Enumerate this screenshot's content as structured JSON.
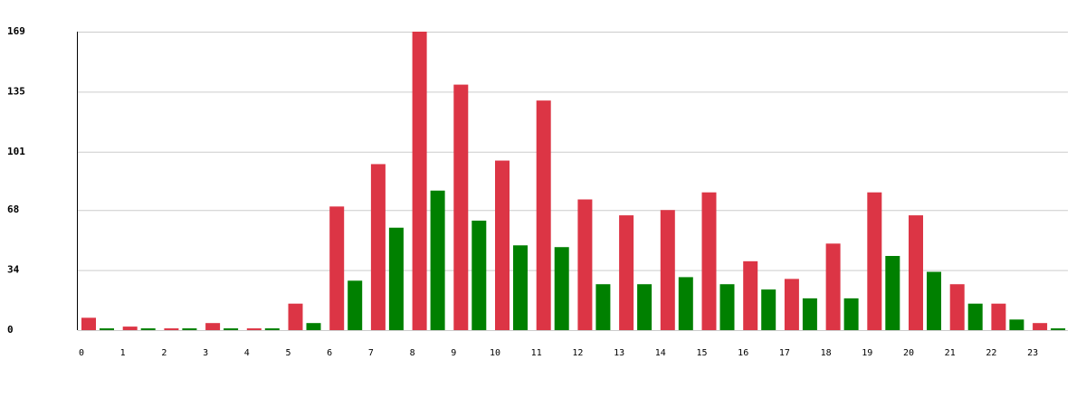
{
  "chart_data": {
    "type": "grouped-bar",
    "categories": [
      "0",
      "1",
      "2",
      "3",
      "4",
      "5",
      "6",
      "7",
      "8",
      "9",
      "10",
      "11",
      "12",
      "13",
      "14",
      "15",
      "16",
      "17",
      "18",
      "19",
      "20",
      "21",
      "22",
      "23"
    ],
    "series": [
      {
        "color": "#dc3545",
        "values": [
          7,
          2,
          1,
          4,
          1,
          15,
          70,
          94,
          169,
          139,
          96,
          130,
          74,
          65,
          68,
          78,
          39,
          29,
          49,
          78,
          65,
          26,
          15,
          4
        ]
      },
      {
        "color": "#008000",
        "values": [
          1,
          1,
          1,
          1,
          1,
          4,
          28,
          58,
          79,
          62,
          48,
          47,
          26,
          26,
          30,
          26,
          23,
          18,
          18,
          42,
          33,
          15,
          6,
          1
        ]
      }
    ],
    "ylim": [
      0,
      169
    ],
    "yticks": [
      0,
      34,
      68,
      101,
      135,
      169
    ],
    "grid": true
  }
}
